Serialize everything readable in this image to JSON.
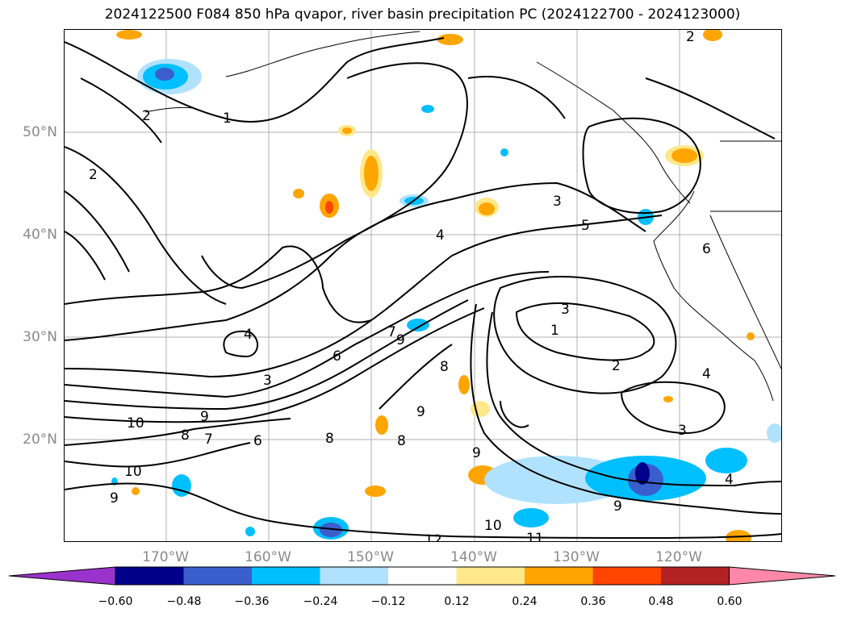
{
  "title": "2024122500 F084 850 hPa qvapor, river basin precipitation PC (2024122700 - 2024123000)",
  "lat_labels": [
    "50°N",
    "40°N",
    "30°N",
    "20°N"
  ],
  "lon_labels": [
    "170°W",
    "160°W",
    "150°W",
    "140°W",
    "130°W",
    "120°W"
  ],
  "colorbar": {
    "ticks": [
      "−0.60",
      "−0.48",
      "−0.36",
      "−0.24",
      "−0.12",
      "0.12",
      "0.24",
      "0.36",
      "0.48",
      "0.60"
    ],
    "colors": [
      "#9933cc",
      "#00008b",
      "#3a5fcd",
      "#00bfff",
      "#b0e2ff",
      "#ffffff",
      "#ffe88a",
      "#ffa500",
      "#ff4500",
      "#b22222",
      "#ff88aa"
    ]
  },
  "contour_labels": [
    "1",
    "2",
    "3",
    "4",
    "5",
    "6",
    "7",
    "8",
    "9",
    "10",
    "11",
    "12"
  ]
}
